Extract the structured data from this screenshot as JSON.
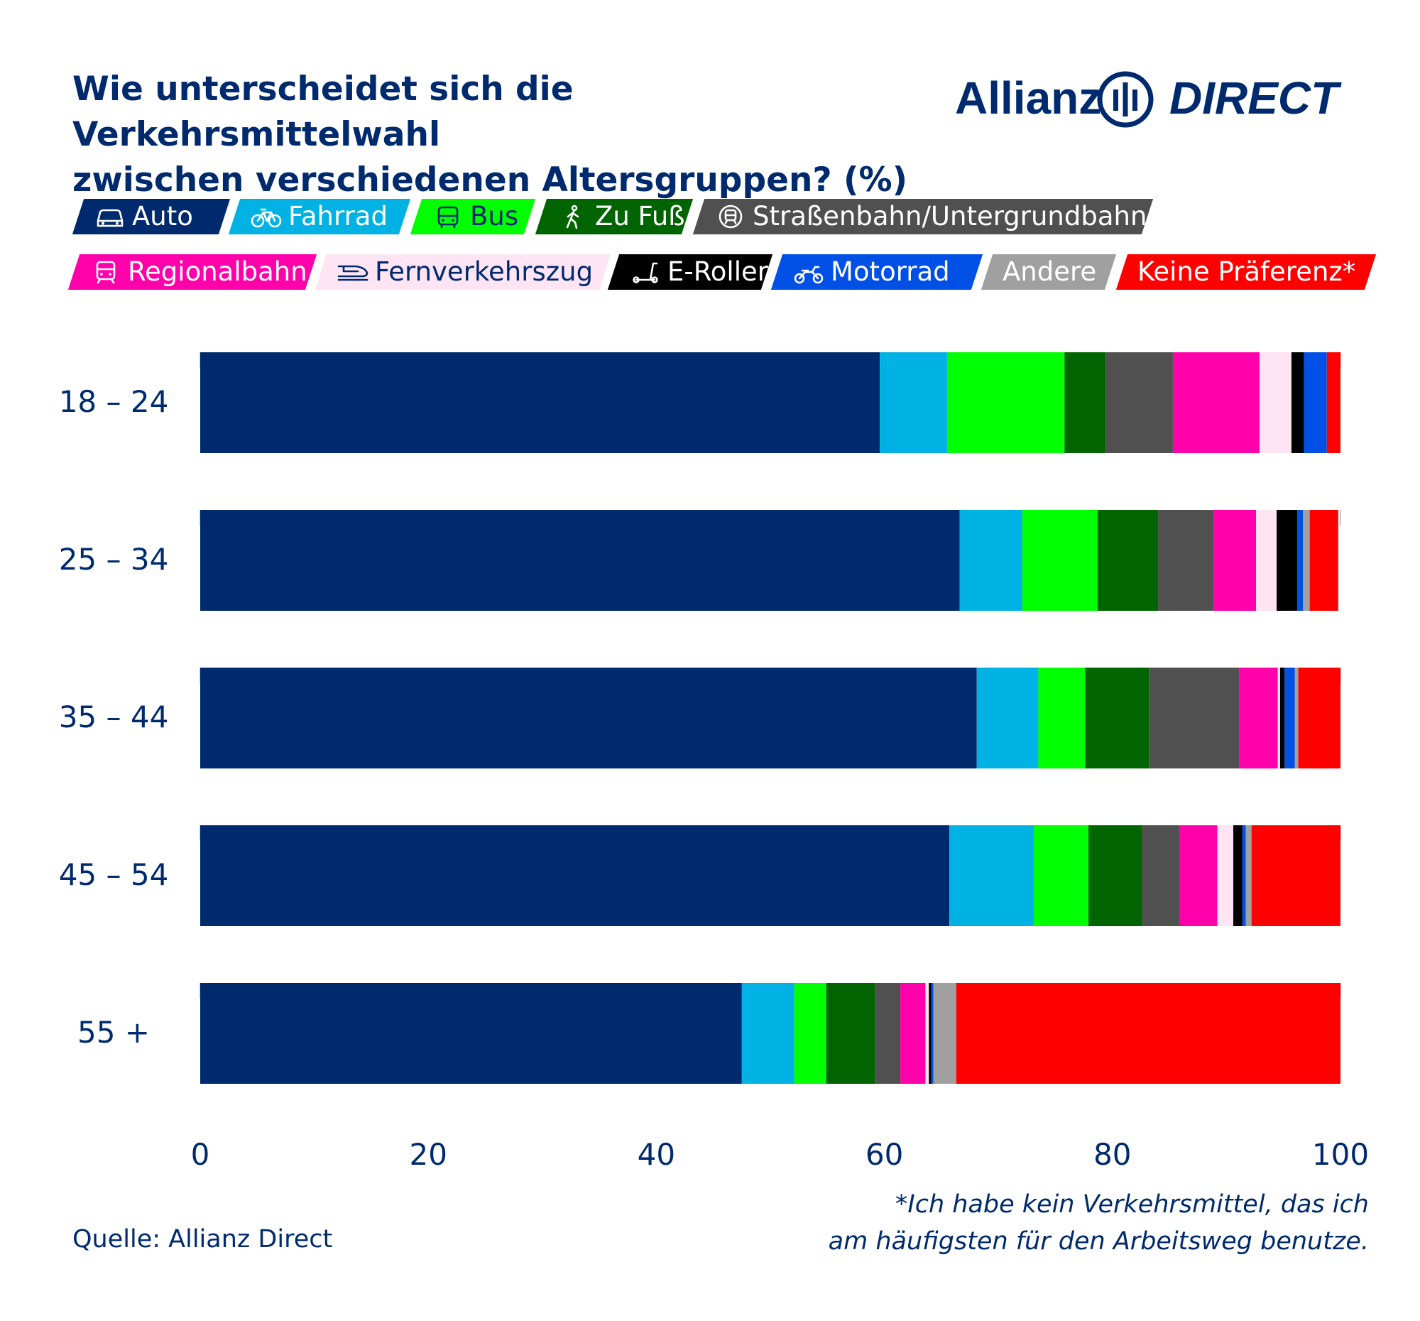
{
  "brand": {
    "name": "Allianz",
    "sub": "DIRECT"
  },
  "chart_data": {
    "type": "bar",
    "orientation": "horizontal",
    "stacked": true,
    "title": "Wie unterscheidet sich die Verkehrsmittelwahl\nzwischen verschiedenen Altersgruppen? (%)",
    "xlabel": "",
    "ylabel": "",
    "xlim": [
      0,
      100
    ],
    "xticks": [
      "0",
      "20",
      "40",
      "60",
      "80",
      "100"
    ],
    "tick_values": [
      0,
      20,
      40,
      60,
      80,
      100
    ],
    "grid": "vertical-dashed",
    "categories": [
      "18 – 24",
      "25 – 34",
      "35 – 44",
      "45 – 54",
      "55 +"
    ],
    "series": [
      {
        "name": "Auto",
        "color": "#002a6e",
        "text_color": "#ffffff",
        "icon": "car-icon",
        "values": [
          59.6,
          66.6,
          68.1,
          65.7,
          47.5
        ]
      },
      {
        "name": "Fahrrad",
        "color": "#00b2e3",
        "text_color": "#ffffff",
        "icon": "bicycle-icon",
        "values": [
          5.9,
          5.5,
          5.4,
          7.4,
          4.6
        ]
      },
      {
        "name": "Bus",
        "color": "#00ff00",
        "text_color": "#002a6e",
        "icon": "bus-icon",
        "values": [
          10.3,
          6.6,
          4.1,
          4.8,
          2.8
        ]
      },
      {
        "name": "Zu Fuß",
        "color": "#006400",
        "text_color": "#ffffff",
        "icon": "walking-icon",
        "values": [
          3.6,
          5.3,
          5.6,
          4.7,
          4.3
        ]
      },
      {
        "name": "Straßenbahn/Untergrundbahn",
        "color": "#505050",
        "text_color": "#ffffff",
        "icon": "tram-icon",
        "values": [
          5.9,
          4.9,
          7.9,
          3.3,
          2.2
        ]
      },
      {
        "name": "Regionalbahn",
        "color": "#ff00aa",
        "text_color": "#ffffff",
        "icon": "regional-train-icon",
        "values": [
          7.6,
          3.7,
          3.4,
          3.3,
          2.2
        ]
      },
      {
        "name": "Fernverkehrszug",
        "color": "#ffe4f4",
        "text_color": "#002a6e",
        "icon": "highspeed-train-icon",
        "values": [
          2.8,
          1.8,
          0.2,
          1.4,
          0.3
        ]
      },
      {
        "name": "E-Roller",
        "color": "#000000",
        "text_color": "#ffffff",
        "icon": "scooter-icon",
        "values": [
          1.1,
          1.8,
          0.4,
          0.8,
          0.2
        ]
      },
      {
        "name": "Motorrad",
        "color": "#0050e6",
        "text_color": "#ffffff",
        "icon": "motorbike-icon",
        "values": [
          2.0,
          0.5,
          0.9,
          0.3,
          0.2
        ]
      },
      {
        "name": "Andere",
        "color": "#a0a0a0",
        "text_color": "#ffffff",
        "icon": "",
        "values": [
          0.0,
          0.6,
          0.3,
          0.5,
          2.0
        ]
      },
      {
        "name": "Keine Präferenz*",
        "color": "#ff0000",
        "text_color": "#ffffff",
        "icon": "",
        "values": [
          1.2,
          2.5,
          3.7,
          7.8,
          34.0
        ]
      }
    ]
  },
  "footer": {
    "source": "Quelle: Allianz Direct",
    "note_line1": "*Ich habe kein Verkehrsmittel, das ich",
    "note_line2": "am häufigsten für den Arbeitsweg benutze."
  }
}
